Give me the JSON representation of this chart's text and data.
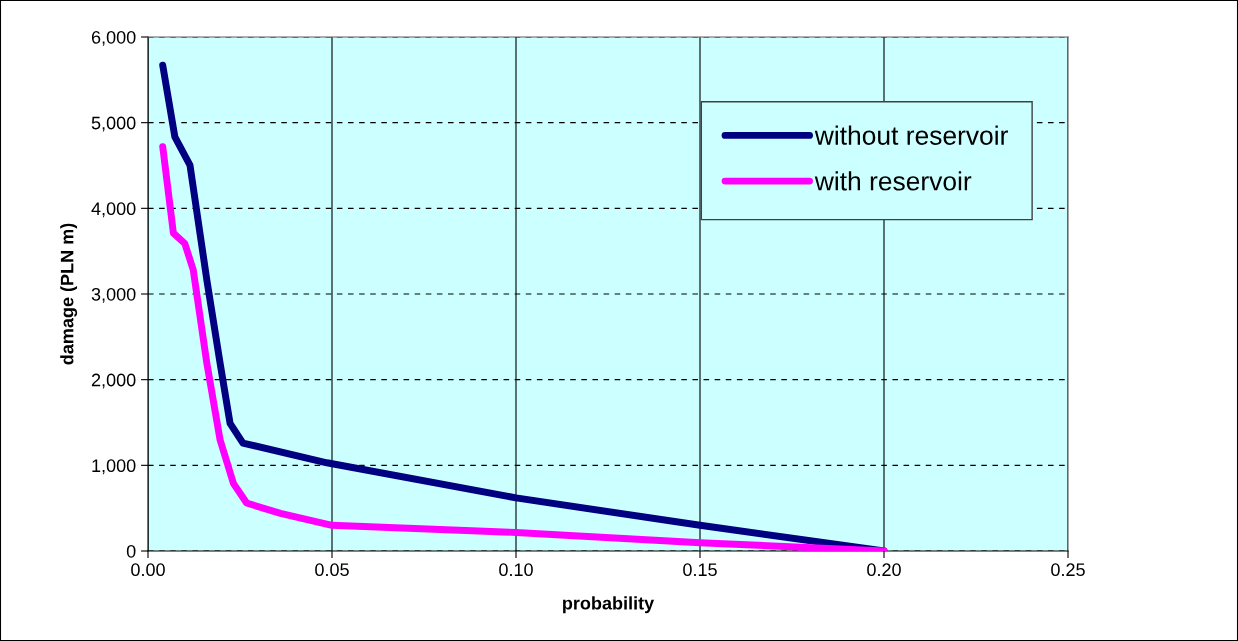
{
  "chart_data": {
    "type": "line",
    "xlabel": "probability",
    "ylabel": "damage (PLN m)",
    "xlim": [
      0,
      0.25
    ],
    "xticks": [
      {
        "value": 0,
        "label": "0.00"
      },
      {
        "value": 0.05,
        "label": "0.05"
      },
      {
        "value": 0.1,
        "label": "0.10"
      },
      {
        "value": 0.15,
        "label": "0.15"
      },
      {
        "value": 0.2,
        "label": "0.20"
      },
      {
        "value": 0.25,
        "label": "0.25"
      }
    ],
    "ylim": [
      0,
      6000
    ],
    "yticks": [
      0,
      {
        "value": 1000,
        "label": "1,000"
      },
      {
        "value": 2000,
        "label": "2,000"
      },
      {
        "value": 3000,
        "label": "3,000"
      },
      {
        "value": 4000,
        "label": "4,000"
      },
      {
        "value": 5000,
        "label": "5,000"
      },
      {
        "value": 6000,
        "label": "6,000"
      }
    ],
    "grid": true,
    "legend": "top right",
    "marker": "none",
    "line_style": "solid",
    "series": [
      {
        "name": "without reservoir",
        "color": "#000080",
        "x": [
          0.004,
          0.0073,
          0.0114,
          0.016,
          0.0196,
          0.0223,
          0.0258,
          0.0486,
          0.1,
          0.15,
          0.2
        ],
        "values": [
          5670,
          4835,
          4505,
          3160,
          2190,
          1490,
          1260,
          1030,
          620,
          300,
          0
        ]
      },
      {
        "name": "with reservoir",
        "color": "#ff00ff",
        "x": [
          0.004,
          0.0069,
          0.01,
          0.0123,
          0.016,
          0.0196,
          0.0232,
          0.0268,
          0.036,
          0.05,
          0.1,
          0.15,
          0.2
        ],
        "values": [
          4720,
          3710,
          3590,
          3280,
          2190,
          1295,
          790,
          560,
          440,
          300,
          217,
          97,
          0
        ]
      }
    ]
  }
}
